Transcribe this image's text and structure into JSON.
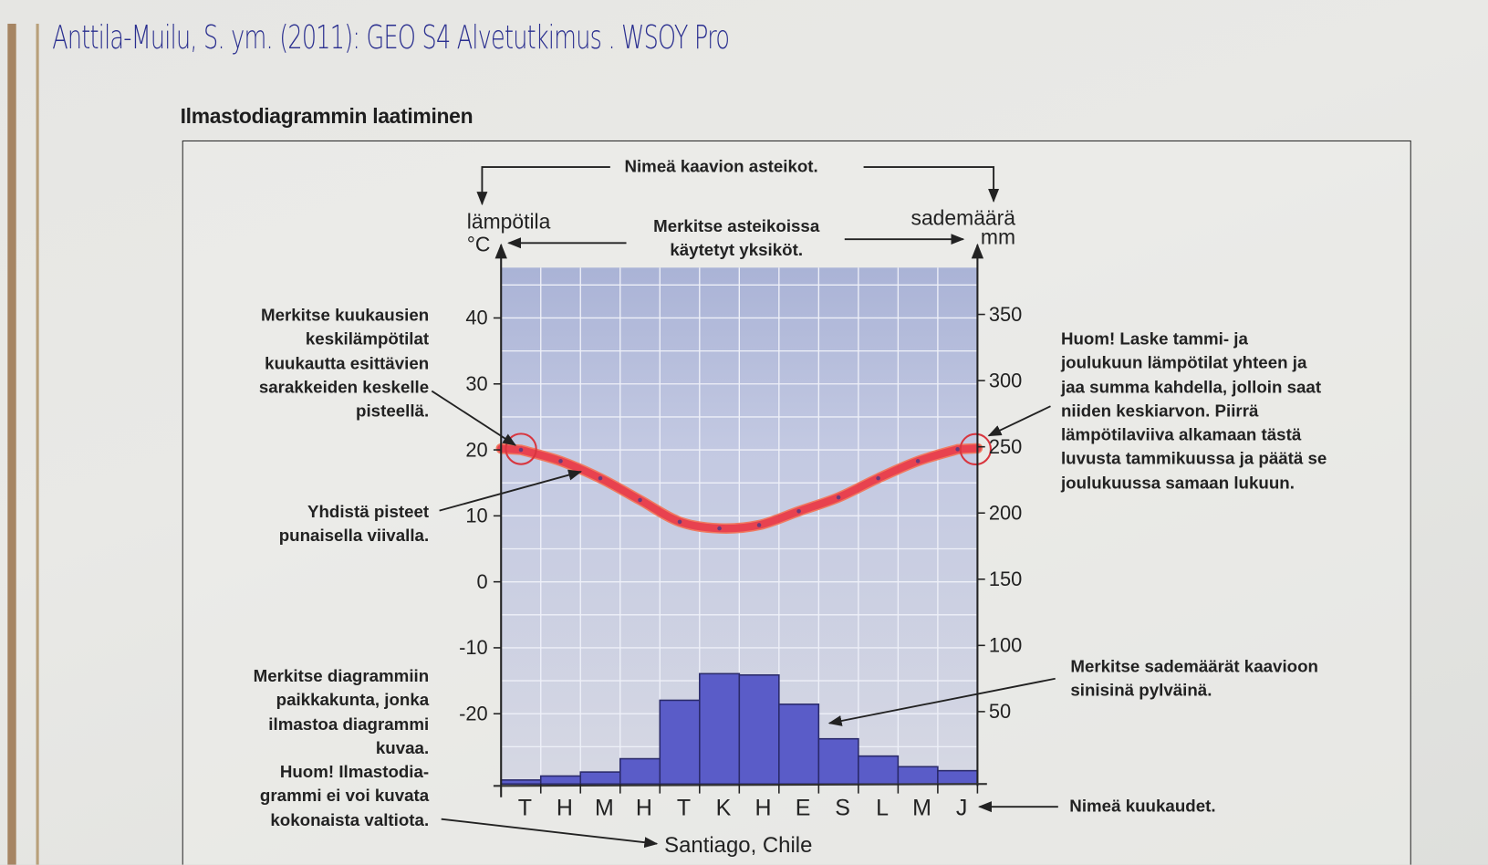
{
  "handwritten_note": "Anttila-Muilu, S. ym. (2011): GEO S4 Alvetutkimus . WSOY Pro",
  "section_title": "Ilmastodiagrammin laatiminen",
  "instructions": {
    "name_scales": "Nimeä kaavion asteikot.",
    "mark_units": [
      "Merkitse asteikoissa",
      "käytetyt yksiköt."
    ],
    "mark_temperatures": [
      "Merkitse kuukausien",
      "keskilämpötilat",
      "kuukautta esittävien",
      "sarakkeiden keskelle",
      "pisteellä."
    ],
    "connect_points": [
      "Yhdistä pisteet",
      "punaisella viivalla."
    ],
    "mark_location": [
      "Merkitse diagrammiin",
      "paikkakunta, jonka",
      "ilmastoa diagrammi",
      "kuvaa.",
      "Huom! Ilmastodia-",
      "grammi ei voi kuvata",
      "kokonaista valtiota."
    ],
    "average_note": [
      "Huom! Laske tammi- ja",
      "joulukuun lämpötilat yhteen ja",
      "jaa summa kahdella, jolloin saat",
      "niiden keskiarvon. Piirrä",
      "lämpötilaviiva alkamaan tästä",
      "luvusta tammikuussa ja päätä se",
      "joulukuussa samaan lukuun."
    ],
    "mark_precipitation": [
      "Merkitse sademäärät kaavioon",
      "sinisinä pylväinä."
    ],
    "name_months": "Nimeä kuukaudet."
  },
  "chart_data": {
    "type": "climate-diagram",
    "title": "Santiago, Chile",
    "left_axis": {
      "label": "lämpötila",
      "unit": "°C",
      "ticks": [
        40,
        30,
        20,
        10,
        0,
        -10,
        -20
      ]
    },
    "right_axis": {
      "label": "sademäärä",
      "unit": "mm",
      "ticks": [
        350,
        300,
        250,
        200,
        150,
        100,
        50
      ]
    },
    "categories": [
      "T",
      "H",
      "M",
      "H",
      "T",
      "K",
      "H",
      "E",
      "S",
      "L",
      "M",
      "J"
    ],
    "series": [
      {
        "name": "temperature",
        "type": "line",
        "color": "#e8424f",
        "values": [
          20,
          18.3,
          15.7,
          12.4,
          9.1,
          8.1,
          8.6,
          10.7,
          12.8,
          15.7,
          18.3,
          20.1
        ]
      },
      {
        "name": "precipitation",
        "type": "bar",
        "color": "#5a5cc8",
        "values": [
          3,
          6,
          9,
          19,
          63,
          83,
          82,
          60,
          34,
          21,
          13,
          10
        ]
      }
    ],
    "highlighted_points": [
      "January",
      "December"
    ],
    "grid": true
  },
  "colors": {
    "plot_bg": "#b9c0dc",
    "grid": "#eef0f8",
    "line": "#e8424f",
    "bar": "#5a5cc8",
    "ink": "#2a2f8f"
  }
}
